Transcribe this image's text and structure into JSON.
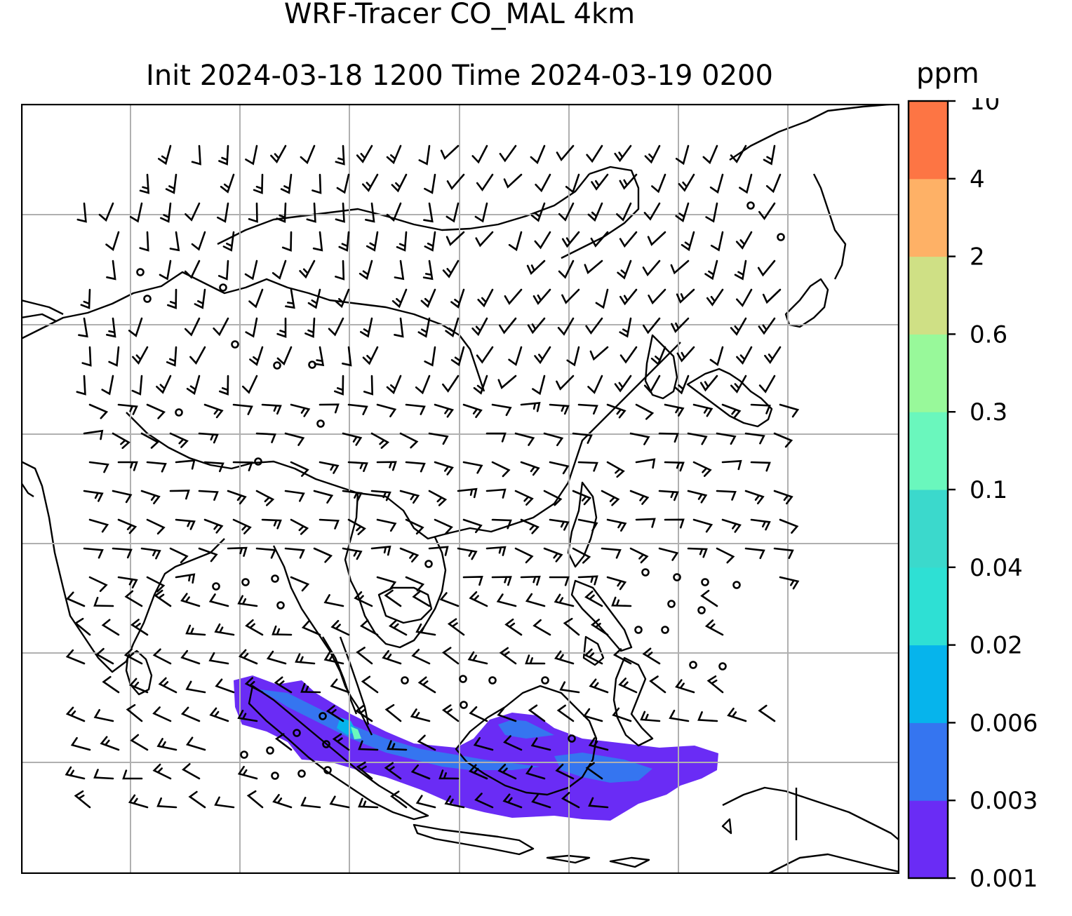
{
  "title": {
    "line1": "WRF-Tracer CO_MAL 4km",
    "line2": "Init 2024-03-18 1200 Time 2024-03-19 0200"
  },
  "colorbar": {
    "unit": "ppm",
    "levels": [
      "0.001",
      "0.003",
      "0.006",
      "0.02",
      "0.04",
      "0.1",
      "0.3",
      "0.6",
      "2",
      "4",
      "10"
    ],
    "colors": [
      "#6a2cf5",
      "#3575f0",
      "#06b4ec",
      "#2ee0d4",
      "#3bd9cc",
      "#6af7bd",
      "#98f99a",
      "#cfe085",
      "#feb166",
      "#fd7544",
      "#fd2e1a"
    ]
  },
  "map": {
    "gridlines": true,
    "coastlines": true,
    "wind_barbs": true,
    "plume_color": "#6a2cf5"
  }
}
